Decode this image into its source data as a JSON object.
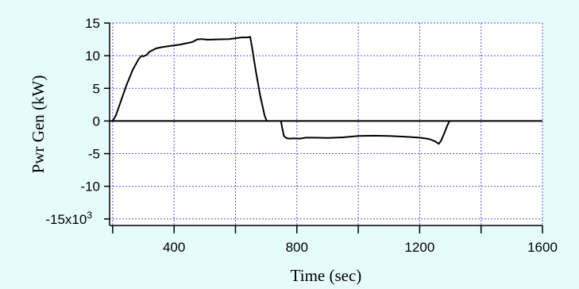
{
  "chart_data": {
    "type": "line",
    "title": "",
    "xlabel": "Time (sec)",
    "ylabel": "Pwr Gen (kW)",
    "xlim": [
      190,
      1600
    ],
    "ylim": [
      -16000,
      15000
    ],
    "x_ticks": [
      400,
      800,
      1200,
      1600
    ],
    "x_tick_labels": [
      "400",
      "800",
      "1200",
      "1600"
    ],
    "x_minor_ticks": [
      200,
      600,
      1000,
      1400
    ],
    "y_ticks": [
      15000,
      10000,
      5000,
      0,
      -5000,
      -10000,
      -15000
    ],
    "y_tick_labels": [
      "15",
      "10",
      "5",
      "0",
      "-5",
      "-10",
      "-15x10"
    ],
    "y_tick_exponent": "3",
    "grid": true,
    "zero_line": true,
    "colors": {
      "background": "#e6fbfb",
      "plot_area": "#ffffff",
      "grid": "#5555dd",
      "line": "#000000"
    },
    "series": [
      {
        "x": [
          200,
          210,
          225,
          245,
          265,
          285,
          295,
          300,
          310,
          320,
          340,
          360,
          390,
          420,
          440,
          460,
          475,
          490,
          510,
          540,
          580,
          620,
          640,
          648,
          655,
          665,
          680,
          695,
          702
        ],
        "y": [
          0,
          800,
          2800,
          5500,
          7800,
          9500,
          10000,
          9900,
          10100,
          10600,
          11100,
          11300,
          11500,
          11700,
          11900,
          12100,
          12500,
          12550,
          12450,
          12500,
          12550,
          12800,
          12800,
          12900,
          11000,
          8000,
          4000,
          800,
          0
        ]
      },
      {
        "x": [
          748,
          752,
          758,
          765,
          775,
          790,
          808,
          830,
          860,
          900,
          950,
          1000,
          1050,
          1100,
          1150,
          1200,
          1230,
          1250,
          1262,
          1270,
          1280,
          1290,
          1297
        ],
        "y": [
          0,
          -1000,
          -2300,
          -2600,
          -2700,
          -2650,
          -2700,
          -2550,
          -2550,
          -2600,
          -2500,
          -2300,
          -2250,
          -2300,
          -2400,
          -2550,
          -2750,
          -3100,
          -3500,
          -3000,
          -1900,
          -700,
          0
        ]
      }
    ]
  }
}
